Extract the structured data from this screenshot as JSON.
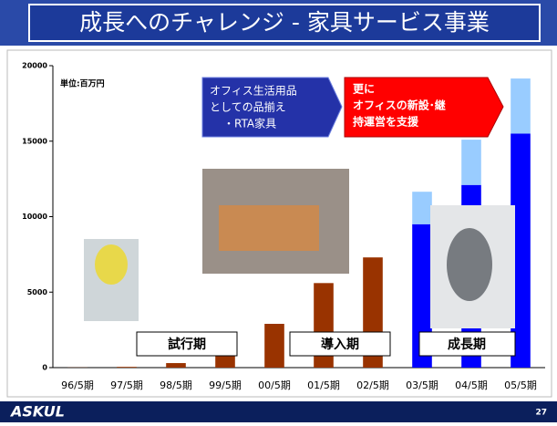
{
  "chart_data": {
    "type": "bar",
    "title": "成長へのチャレンジ - 家具サービス事業",
    "unit_label": "単位:百万円",
    "categories": [
      "96/5期",
      "97/5期",
      "98/5期",
      "99/5期",
      "00/5期",
      "01/5期",
      "02/5期",
      "03/5期",
      "04/5期",
      "05/5期"
    ],
    "series": [
      {
        "color": "#993300",
        "values": [
          10,
          50,
          300,
          1000,
          2900,
          5600,
          7300,
          null,
          null,
          null
        ]
      },
      {
        "color": "#0000ff",
        "values": [
          null,
          null,
          null,
          null,
          null,
          null,
          null,
          9500,
          12100,
          15500
        ]
      },
      {
        "color": "#99ccff",
        "values": [
          null,
          null,
          null,
          null,
          null,
          null,
          null,
          2150,
          3000,
          3650
        ]
      }
    ],
    "stacked": true,
    "ylim": [
      0,
      20000
    ],
    "yticks": [
      0,
      5000,
      10000,
      15000,
      20000
    ],
    "annotations": {
      "blue_callout": [
        "オフィス生活用品",
        "としての品揃え",
        "・RTA家具"
      ],
      "red_callout": [
        "更に",
        "オフィスの新設･継",
        "持運営を支援"
      ],
      "phases": [
        "試行期",
        "導入期",
        "成長期"
      ]
    },
    "logo": "ASKUL",
    "page_number": "27"
  }
}
